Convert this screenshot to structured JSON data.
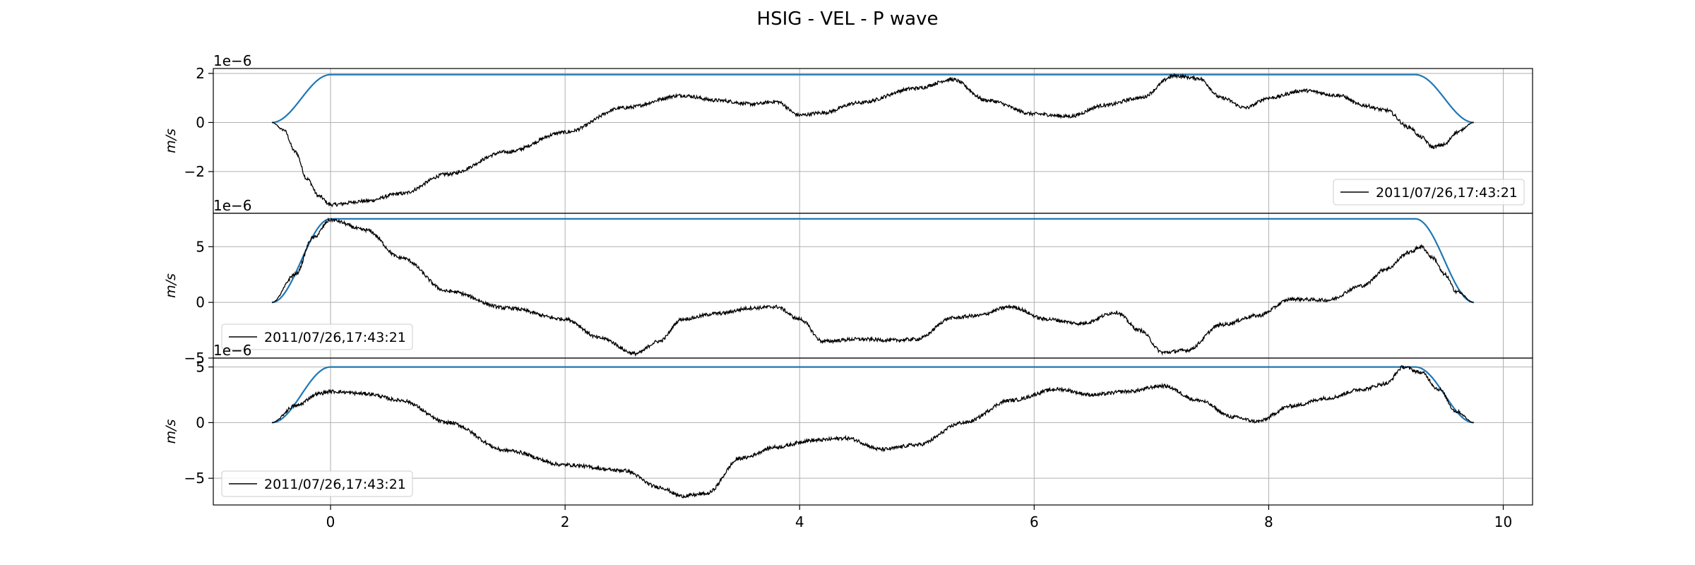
{
  "chart_data": {
    "title": "HSIG - VEL - P wave",
    "type": "line",
    "xticks": [
      0,
      2,
      4,
      6,
      8,
      10
    ],
    "xlim": [
      -1.0,
      10.25
    ],
    "colors": {
      "signal": "#000000",
      "envelope": "#1f77b4"
    },
    "grid": true,
    "panels": [
      {
        "ylabel": "m/s",
        "exponent": "1e−6",
        "ylim": [
          -3.7,
          2.2
        ],
        "yticks": [
          -2,
          0,
          2
        ],
        "legend": "2011/07/26,17:43:21",
        "legend_loc": "lower-right",
        "envelope": {
          "start": -0.5,
          "ramp_end": 0.0,
          "taper_start": 9.25,
          "end": 9.75,
          "level": 1.95
        },
        "signal": {
          "x": [
            -0.5,
            -0.4,
            -0.3,
            -0.2,
            -0.1,
            0.0,
            0.3,
            0.6,
            1.0,
            1.5,
            2.0,
            2.5,
            3.0,
            3.3,
            3.6,
            3.8,
            4.0,
            4.2,
            4.5,
            5.0,
            5.3,
            5.6,
            6.0,
            6.3,
            6.6,
            6.9,
            7.2,
            7.4,
            7.6,
            7.8,
            8.0,
            8.3,
            8.6,
            8.8,
            9.0,
            9.2,
            9.3,
            9.4,
            9.5,
            9.6,
            9.75
          ],
          "y": [
            0.0,
            -0.3,
            -1.2,
            -2.3,
            -3.0,
            -3.35,
            -3.2,
            -2.9,
            -2.1,
            -1.2,
            -0.4,
            0.6,
            1.1,
            0.9,
            0.75,
            0.85,
            0.3,
            0.4,
            0.8,
            1.4,
            1.75,
            0.9,
            0.35,
            0.25,
            0.7,
            1.0,
            1.9,
            1.8,
            1.0,
            0.6,
            1.0,
            1.3,
            1.1,
            0.7,
            0.5,
            -0.2,
            -0.6,
            -1.0,
            -0.9,
            -0.4,
            0.0
          ]
        }
      },
      {
        "ylabel": "m/s",
        "exponent": "1e−6",
        "ylim": [
          -5.0,
          8.0
        ],
        "yticks": [
          -5,
          0,
          5
        ],
        "legend": "2011/07/26,17:43:21",
        "legend_loc": "lower-left",
        "envelope": {
          "start": -0.5,
          "ramp_end": 0.0,
          "taper_start": 9.25,
          "end": 9.75,
          "level": 7.5
        },
        "signal": {
          "x": [
            -0.5,
            -0.3,
            -0.15,
            0.0,
            0.3,
            0.6,
            1.0,
            1.5,
            2.0,
            2.3,
            2.6,
            2.8,
            3.0,
            3.3,
            3.6,
            3.8,
            4.0,
            4.2,
            4.5,
            4.8,
            5.0,
            5.3,
            5.5,
            5.8,
            6.1,
            6.4,
            6.7,
            6.9,
            7.1,
            7.3,
            7.6,
            7.9,
            8.2,
            8.5,
            8.8,
            9.0,
            9.2,
            9.3,
            9.4,
            9.5,
            9.6,
            9.75
          ],
          "y": [
            0.0,
            2.5,
            5.8,
            7.4,
            6.5,
            4.0,
            1.0,
            -0.5,
            -1.5,
            -3.2,
            -4.6,
            -3.5,
            -1.5,
            -1.0,
            -0.5,
            -0.4,
            -1.5,
            -3.5,
            -3.3,
            -3.4,
            -3.3,
            -1.4,
            -1.2,
            -0.4,
            -1.5,
            -1.9,
            -0.9,
            -2.5,
            -4.5,
            -4.3,
            -2.0,
            -1.2,
            0.3,
            0.2,
            1.5,
            3.0,
            4.5,
            5.0,
            4.0,
            2.5,
            1.0,
            0.0
          ]
        }
      },
      {
        "ylabel": "m/s",
        "exponent": "1e−6",
        "ylim": [
          -7.4,
          5.8
        ],
        "yticks": [
          -5,
          0,
          5
        ],
        "legend": "2011/07/26,17:43:21",
        "legend_loc": "lower-left",
        "envelope": {
          "start": -0.5,
          "ramp_end": 0.0,
          "taper_start": 9.25,
          "end": 9.75,
          "level": 5.0
        },
        "signal": {
          "x": [
            -0.5,
            -0.3,
            -0.1,
            0.0,
            0.3,
            0.6,
            1.0,
            1.5,
            2.0,
            2.5,
            2.8,
            3.0,
            3.2,
            3.5,
            3.8,
            4.1,
            4.4,
            4.7,
            5.0,
            5.4,
            5.8,
            6.2,
            6.5,
            6.8,
            7.1,
            7.4,
            7.7,
            7.9,
            8.2,
            8.5,
            8.8,
            9.0,
            9.15,
            9.3,
            9.45,
            9.6,
            9.75
          ],
          "y": [
            0.0,
            1.5,
            2.6,
            2.8,
            2.6,
            2.0,
            0.0,
            -2.5,
            -3.8,
            -4.3,
            -5.8,
            -6.6,
            -6.4,
            -3.2,
            -2.2,
            -1.6,
            -1.4,
            -2.4,
            -2.0,
            0.0,
            2.0,
            3.0,
            2.5,
            2.8,
            3.3,
            2.0,
            0.5,
            0.1,
            1.5,
            2.2,
            3.0,
            3.5,
            5.0,
            4.5,
            3.0,
            1.0,
            0.0
          ]
        }
      }
    ]
  }
}
